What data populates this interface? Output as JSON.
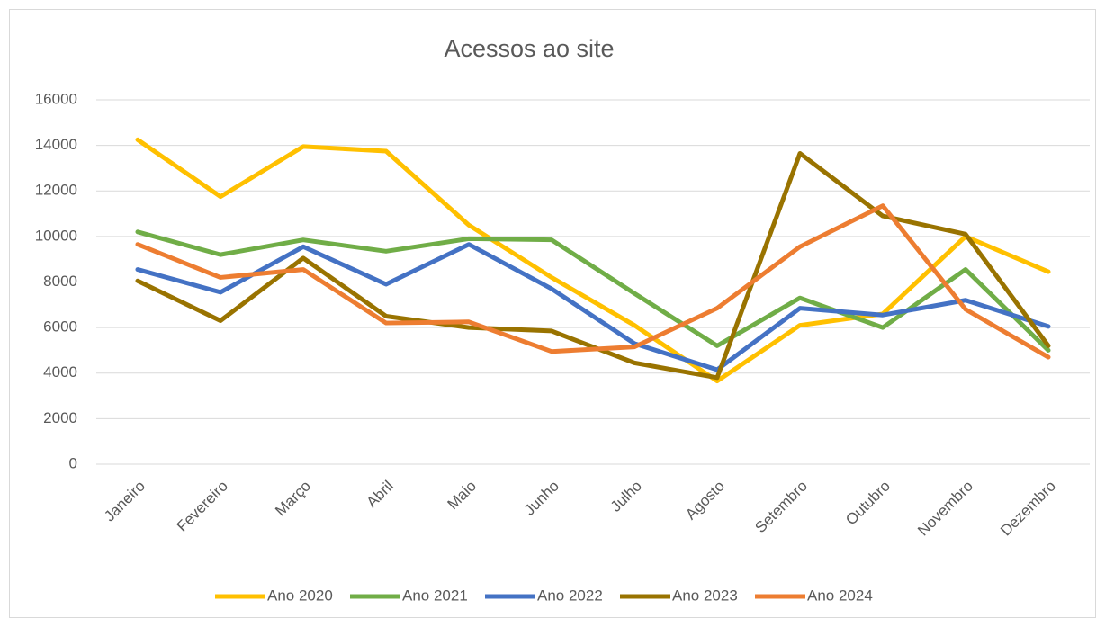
{
  "chart_data": {
    "type": "line",
    "title": "Acessos ao site",
    "categories": [
      "Janeiro",
      "Fevereiro",
      "Março",
      "Abril",
      "Maio",
      "Junho",
      "Julho",
      "Agosto",
      "Setembro",
      "Outubro",
      "Novembro",
      "Dezembro"
    ],
    "series": [
      {
        "name": "Ano 2020",
        "color": "#FFC000",
        "values": [
          14250,
          11750,
          13950,
          13750,
          10500,
          8200,
          6100,
          3650,
          6100,
          6600,
          10000,
          8450
        ]
      },
      {
        "name": "Ano 2021",
        "color": "#70AD47",
        "values": [
          10200,
          9200,
          9850,
          9350,
          9900,
          9850,
          7500,
          5200,
          7300,
          6000,
          8550,
          5000
        ]
      },
      {
        "name": "Ano 2022",
        "color": "#4472C4",
        "values": [
          8550,
          7550,
          9550,
          7900,
          9650,
          7700,
          5300,
          4150,
          6850,
          6550,
          7200,
          6050
        ]
      },
      {
        "name": "Ano 2023",
        "color": "#997300",
        "values": [
          8050,
          6300,
          9050,
          6500,
          6000,
          5850,
          4450,
          3800,
          13650,
          10900,
          10100,
          5200
        ]
      },
      {
        "name": "Ano 2024",
        "color": "#ED7D31",
        "values": [
          9650,
          8200,
          8550,
          6200,
          6250,
          4950,
          5150,
          6850,
          9550,
          11350,
          6800,
          4700
        ]
      }
    ],
    "ylim": [
      0,
      16000
    ],
    "yticks": [
      0,
      2000,
      4000,
      6000,
      8000,
      10000,
      12000,
      14000,
      16000
    ],
    "grid": true,
    "legend": "bottom"
  }
}
